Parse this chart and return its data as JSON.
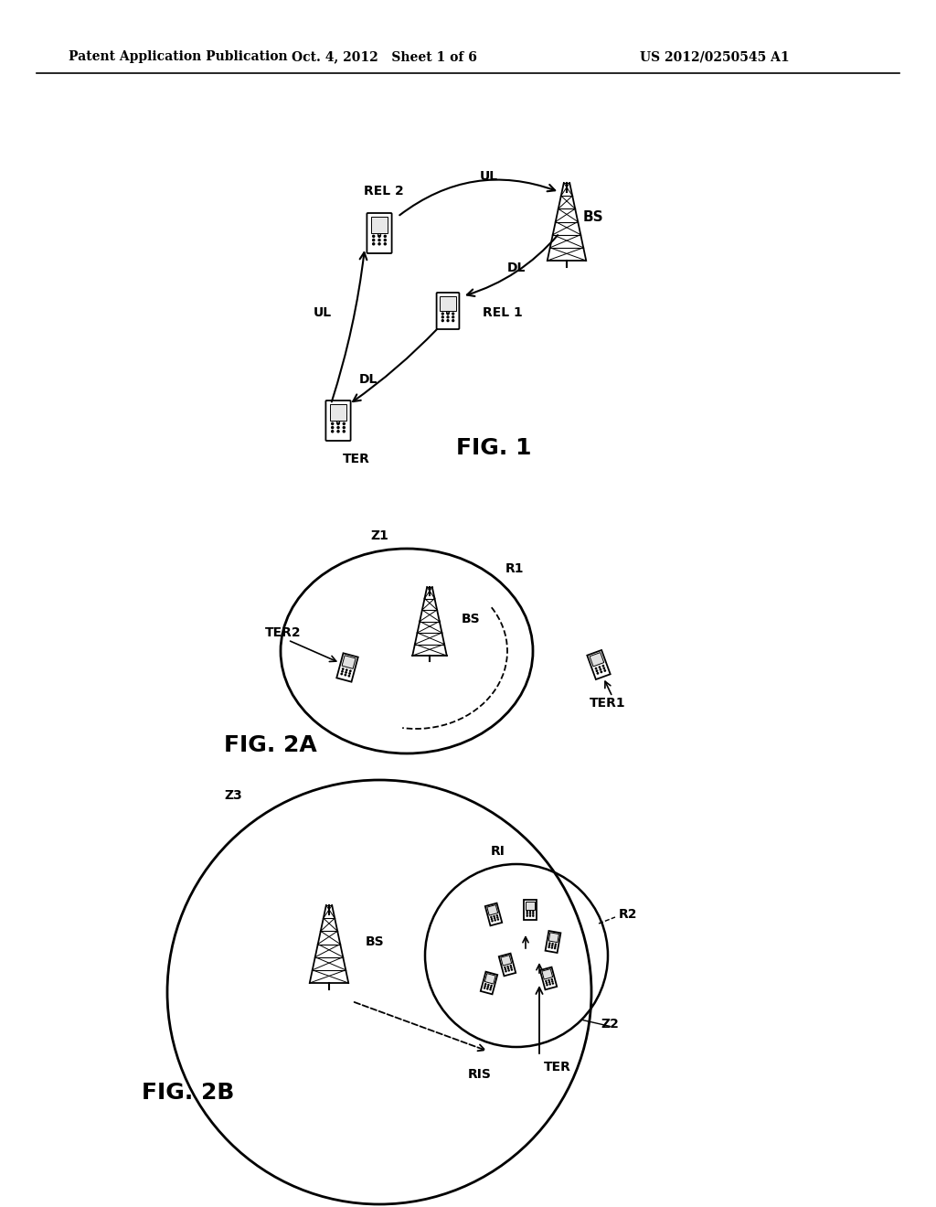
{
  "bg_color": "#ffffff",
  "header_left": "Patent Application Publication",
  "header_mid": "Oct. 4, 2012   Sheet 1 of 6",
  "header_right": "US 2012/0250545 A1",
  "fig1_label": "FIG. 1",
  "fig2a_label": "FIG. 2A",
  "fig2b_label": "FIG. 2B",
  "text_color": "#000000",
  "line_color": "#000000"
}
